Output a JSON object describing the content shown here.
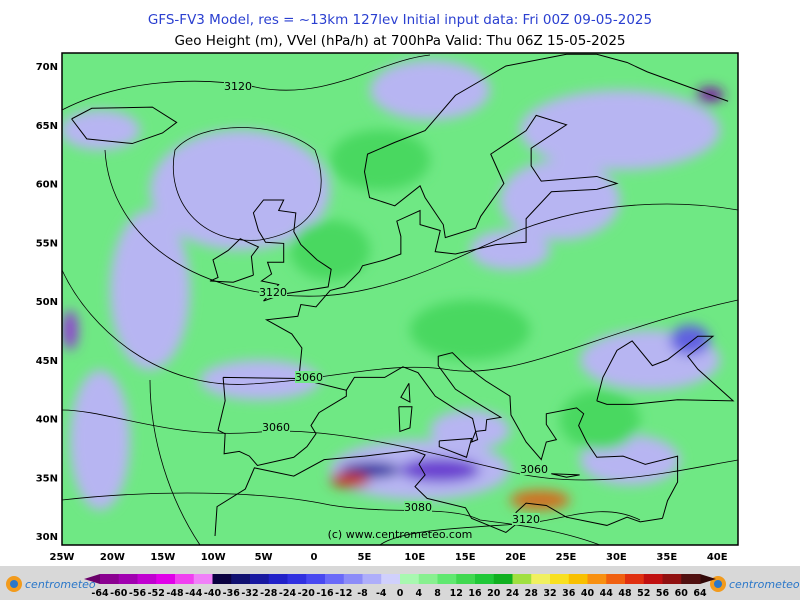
{
  "header": {
    "line1": "GFS-FV3 Model, res = ~13km 127lev   Initial input data: Fri 00Z 09-05-2025",
    "line2": "Geo Height (m), VVel (hPa/h) at 700hPa  Valid: Thu 06Z 15-05-2025"
  },
  "map": {
    "lat_labels": [
      "70N",
      "65N",
      "60N",
      "55N",
      "50N",
      "45N",
      "40N",
      "35N",
      "30N"
    ],
    "lon_labels": [
      "25W",
      "20W",
      "15W",
      "10W",
      "5W",
      "0",
      "5E",
      "10E",
      "15E",
      "20E",
      "25E",
      "30E",
      "35E",
      "40E"
    ],
    "contour_labels": [
      "3120",
      "3120",
      "3060",
      "3060",
      "3060",
      "3080",
      "3120"
    ],
    "watermark": "(c) www.centrometeo.com"
  },
  "colorbar": {
    "labels": [
      -64,
      -60,
      -56,
      -52,
      -48,
      -44,
      -40,
      -36,
      -32,
      -28,
      -24,
      -20,
      -16,
      -12,
      -8,
      -4,
      0,
      4,
      8,
      12,
      16,
      20,
      24,
      28,
      32,
      36,
      40,
      44,
      48,
      52,
      56,
      60,
      64
    ]
  },
  "logos": {
    "left": "centrometeo",
    "right": "centrometeo"
  }
}
